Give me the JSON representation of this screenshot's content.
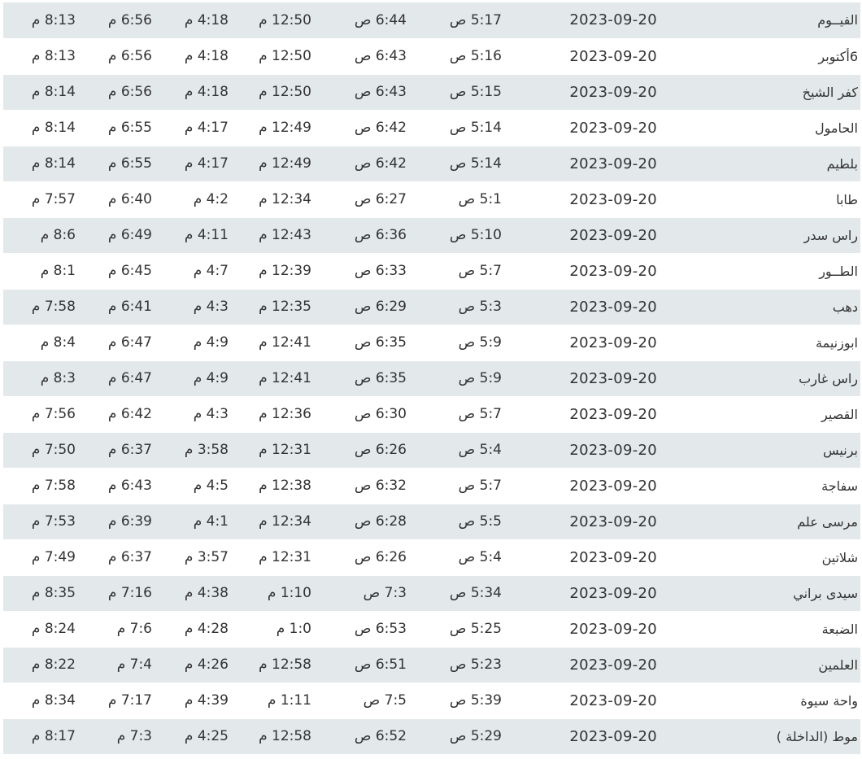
{
  "rows": [
    [
      "الفيــوم",
      "2023-09-20",
      "5:17 ص",
      "6:44 ص",
      "12:50 م",
      "4:18 م",
      "6:56 م",
      "8:13 م"
    ],
    [
      "6أكتوبر",
      "2023-09-20",
      "5:16 ص",
      "6:43 ص",
      "12:50 م",
      "4:18 م",
      "6:56 م",
      "8:13 م"
    ],
    [
      "كفر الشيخ",
      "2023-09-20",
      "5:15 ص",
      "6:43 ص",
      "12:50 م",
      "4:18 م",
      "6:56 م",
      "8:14 م"
    ],
    [
      "الحامول",
      "2023-09-20",
      "5:14 ص",
      "6:42 ص",
      "12:49 م",
      "4:17 م",
      "6:55 م",
      "8:14 م"
    ],
    [
      "بلطيم",
      "2023-09-20",
      "5:14 ص",
      "6:42 ص",
      "12:49 م",
      "4:17 م",
      "6:55 م",
      "8:14 م"
    ],
    [
      "طابا",
      "2023-09-20",
      "5:1 ص",
      "6:27 ص",
      "12:34 م",
      "4:2 م",
      "6:40 م",
      "7:57 م"
    ],
    [
      "راس سدر",
      "2023-09-20",
      "5:10 ص",
      "6:36 ص",
      "12:43 م",
      "4:11 م",
      "6:49 م",
      "8:6 م"
    ],
    [
      "الطــور",
      "2023-09-20",
      "5:7 ص",
      "6:33 ص",
      "12:39 م",
      "4:7 م",
      "6:45 م",
      "8:1 م"
    ],
    [
      "دهب",
      "2023-09-20",
      "5:3 ص",
      "6:29 ص",
      "12:35 م",
      "4:3 م",
      "6:41 م",
      "7:58 م"
    ],
    [
      "ابوزنيمة",
      "2023-09-20",
      "5:9 ص",
      "6:35 ص",
      "12:41 م",
      "4:9 م",
      "6:47 م",
      "8:4 م"
    ],
    [
      "راس غارب",
      "2023-09-20",
      "5:9 ص",
      "6:35 ص",
      "12:41 م",
      "4:9 م",
      "6:47 م",
      "8:3 م"
    ],
    [
      "القصير",
      "2023-09-20",
      "5:7 ص",
      "6:30 ص",
      "12:36 م",
      "4:3 م",
      "6:42 م",
      "7:56 م"
    ],
    [
      "برنيس",
      "2023-09-20",
      "5:4 ص",
      "6:26 ص",
      "12:31 م",
      "3:58 م",
      "6:37 م",
      "7:50 م"
    ],
    [
      "سفاجة",
      "2023-09-20",
      "5:7 ص",
      "6:32 ص",
      "12:38 م",
      "4:5 م",
      "6:43 م",
      "7:58 م"
    ],
    [
      "مرسى علم",
      "2023-09-20",
      "5:5 ص",
      "6:28 ص",
      "12:34 م",
      "4:1 م",
      "6:39 م",
      "7:53 م"
    ],
    [
      "شلاتين",
      "2023-09-20",
      "5:4 ص",
      "6:26 ص",
      "12:31 م",
      "3:57 م",
      "6:37 م",
      "7:49 م"
    ],
    [
      "سيدى براني",
      "2023-09-20",
      "5:34 ص",
      "7:3 ص",
      "1:10 م",
      "4:38 م",
      "7:16 م",
      "8:35 م"
    ],
    [
      "الضبعة",
      "2023-09-20",
      "5:25 ص",
      "6:53 ص",
      "1:0 م",
      "4:28 م",
      "7:6 م",
      "8:24 م"
    ],
    [
      "العلمين",
      "2023-09-20",
      "5:23 ص",
      "6:51 ص",
      "12:58 م",
      "4:26 م",
      "7:4 م",
      "8:22 م"
    ],
    [
      "واحة سيوة",
      "2023-09-20",
      "5:39 ص",
      "7:5 ص",
      "1:11 م",
      "4:39 م",
      "7:17 م",
      "8:34 م"
    ],
    [
      "موط (الداخلة )",
      "2023-09-20",
      "5:29 ص",
      "6:52 ص",
      "12:58 م",
      "4:25 م",
      "7:3 م",
      "8:17 م"
    ]
  ]
}
